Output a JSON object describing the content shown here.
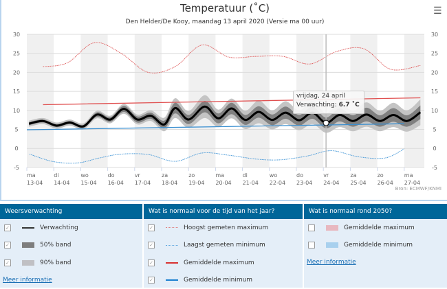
{
  "header": {
    "title": "Temperatuur (˚C)",
    "subtitle": "Den Helder/De Kooy, maandag 13 april 2020 (Versie ma 00 uur)",
    "menu_icon": "hamburger-icon"
  },
  "tooltip": {
    "date": "vrijdag, 24 april",
    "label": "Verwachting: ",
    "value": "6.7 ˚C"
  },
  "credit": "Bron: ECMWF/KNMI",
  "chart_data": {
    "type": "line",
    "title": "Temperatuur (˚C)",
    "ylim": [
      -5,
      30
    ],
    "yticks": [
      -5,
      0,
      5,
      10,
      15,
      20,
      25,
      30
    ],
    "grid": true,
    "x_unit": "days since ma 13-04 00h",
    "categories": [
      [
        "ma",
        "13-04"
      ],
      [
        "di",
        "14-04"
      ],
      [
        "wo",
        "15-04"
      ],
      [
        "do",
        "16-04"
      ],
      [
        "vr",
        "17-04"
      ],
      [
        "za",
        "18-04"
      ],
      [
        "zo",
        "19-04"
      ],
      [
        "ma",
        "20-04"
      ],
      [
        "di",
        "21-04"
      ],
      [
        "wo",
        "22-04"
      ],
      [
        "do",
        "23-04"
      ],
      [
        "vr",
        "24-04"
      ],
      [
        "za",
        "25-04"
      ],
      [
        "zo",
        "26-04"
      ],
      [
        "ma",
        "27-04"
      ]
    ],
    "colors": {
      "forecast": "#000000",
      "band50": "#808080",
      "band90": "#c4c4c4",
      "record_max": "#e06060",
      "record_min": "#4a9ad8",
      "avg_max": "#e05050",
      "avg_min": "#3a8fd0",
      "day_stripe": "#f0f0f0"
    },
    "forecast": {
      "name": "Verwachting",
      "x": [
        0.08,
        0.6,
        1.1,
        1.6,
        2.1,
        2.6,
        3.1,
        3.6,
        4.1,
        4.6,
        5.1,
        5.5,
        6.0,
        6.6,
        7.1,
        7.6,
        8.1,
        8.6,
        9.1,
        9.6,
        10.1,
        10.6,
        11.1,
        11.6,
        12.1,
        12.6,
        13.1,
        13.6,
        14.1,
        14.6
      ],
      "y": [
        6.5,
        7.2,
        6.0,
        6.8,
        5.8,
        8.9,
        7.6,
        10.4,
        7.6,
        8.6,
        6.3,
        10.6,
        7.6,
        11.0,
        7.9,
        10.5,
        7.5,
        9.6,
        7.5,
        9.4,
        7.4,
        9.4,
        6.7,
        8.8,
        7.2,
        8.9,
        7.2,
        8.8,
        7.2,
        9.5
      ]
    },
    "band50_halfwidth": [
      0.4,
      0.4,
      0.4,
      0.4,
      0.4,
      0.6,
      0.6,
      0.8,
      0.8,
      0.8,
      1.0,
      1.4,
      1.2,
      1.5,
      1.3,
      1.5,
      1.3,
      1.5,
      1.4,
      1.6,
      1.4,
      1.6,
      1.4,
      1.7,
      1.5,
      1.8,
      1.5,
      1.8,
      1.5,
      1.8
    ],
    "band90_halfwidth": [
      0.8,
      0.8,
      0.8,
      0.8,
      0.8,
      1.0,
      1.0,
      1.3,
      1.3,
      1.4,
      1.8,
      2.6,
      2.2,
      3.0,
      2.3,
      2.6,
      2.4,
      3.0,
      2.5,
      3.0,
      2.6,
      3.0,
      2.6,
      3.2,
      2.7,
      3.2,
      2.7,
      3.2,
      2.8,
      3.4
    ],
    "record_max": {
      "name": "Hoogst gemeten maximum",
      "x": [
        0.6,
        1.5,
        2.5,
        3.5,
        4.5,
        5.5,
        6.5,
        7.5,
        8.5,
        9.5,
        10.5,
        11.5,
        12.5,
        13.5,
        14.6
      ],
      "y": [
        21.5,
        22.5,
        27.8,
        25.0,
        20.0,
        21.5,
        27.2,
        24.0,
        24.2,
        24.2,
        22.2,
        25.5,
        26.2,
        20.8,
        21.8
      ]
    },
    "record_min": {
      "name": "Laagst gemeten minimum",
      "x": [
        0.1,
        1.0,
        1.9,
        2.7,
        3.5,
        4.5,
        5.5,
        6.5,
        7.5,
        8.5,
        9.4,
        10.4,
        11.3,
        12.3,
        13.3,
        14.0
      ],
      "y": [
        -1.5,
        -3.5,
        -3.8,
        -2.5,
        -1.5,
        -1.6,
        -3.4,
        -1.2,
        -1.8,
        -2.8,
        -3.0,
        -2.0,
        -0.6,
        -2.2,
        -2.5,
        -0.1
      ]
    },
    "avg_max": {
      "name": "Gemiddelde maximum",
      "x": [
        0.6,
        14.6
      ],
      "y": [
        11.5,
        13.3
      ]
    },
    "avg_min": {
      "name": "Gemiddelde minimum",
      "x": [
        0.0,
        14.0
      ],
      "y": [
        4.9,
        6.5
      ]
    },
    "highlight": {
      "x": 11.1,
      "y": 6.7
    }
  },
  "legend": {
    "forecast": {
      "title": "Weersverwachting",
      "items": [
        {
          "label": "Verwachting",
          "checked": true
        },
        {
          "label": "50% band",
          "checked": true
        },
        {
          "label": "90% band",
          "checked": true
        }
      ],
      "link": "Meer informatie"
    },
    "normal": {
      "title": "Wat is normaal voor de tijd van het jaar?",
      "items": [
        {
          "label": "Hoogst gemeten maximum",
          "checked": true
        },
        {
          "label": "Laagst gemeten minimum",
          "checked": true
        },
        {
          "label": "Gemiddelde maximum",
          "checked": true
        },
        {
          "label": "Gemiddelde minimum",
          "checked": true
        }
      ]
    },
    "future": {
      "title": "Wat is normaal rond 2050?",
      "items": [
        {
          "label": "Gemiddelde maximum",
          "checked": false
        },
        {
          "label": "Gemiddelde minimum",
          "checked": false
        }
      ],
      "link": "Meer informatie"
    }
  }
}
